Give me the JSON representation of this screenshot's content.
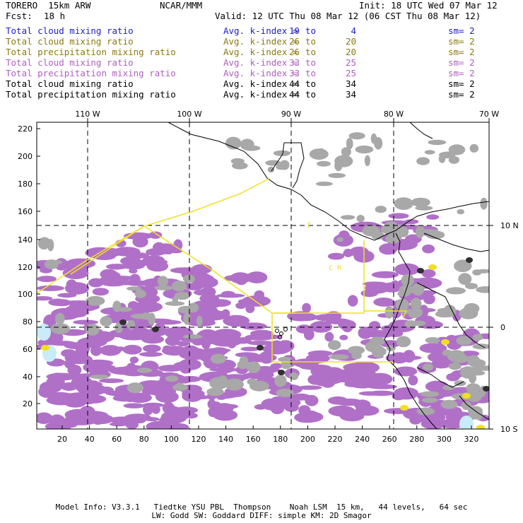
{
  "header": {
    "model": "TORERO  15km ARW",
    "org": "NCAR/MMM",
    "init": "Init: 18 UTC Wed 07 Mar 12",
    "fcst_label": "Fcst:",
    "fcst_value": "18 h",
    "valid": "Valid: 12 UTC Thu 08 Mar 12 (06 CST Thu 08 Mar 12)"
  },
  "legend_rows": [
    {
      "field": "Total cloud mixing ratio",
      "index_label": "Avg. k-index =",
      "from": "19",
      "to_word": "to",
      "to": "4",
      "sm": "sm= 2",
      "color": "#2020c0"
    },
    {
      "field": "Total cloud mixing ratio",
      "index_label": "Avg. k-index =",
      "from": "26",
      "to_word": "to",
      "to": "20",
      "sm": "sm= 2",
      "color": "#8a7a10"
    },
    {
      "field": "Total precipitation mixing ratio",
      "index_label": "Avg. k-index =",
      "from": "26",
      "to_word": "to",
      "to": "20",
      "sm": "sm= 2",
      "color": "#8a7a10"
    },
    {
      "field": "Total cloud mixing ratio",
      "index_label": "Avg. k-index =",
      "from": "33",
      "to_word": "to",
      "to": "25",
      "sm": "sm= 2",
      "color": "#b060c0"
    },
    {
      "field": "Total precipitation mixing ratio",
      "index_label": "Avg. k-index =",
      "from": "33",
      "to_word": "to",
      "to": "25",
      "sm": "sm= 2",
      "color": "#b060c0"
    },
    {
      "field": "Total cloud mixing ratio",
      "index_label": "Avg. k-index =",
      "from": "44",
      "to_word": "to",
      "to": "34",
      "sm": "sm= 2",
      "color": "#000000"
    },
    {
      "field": "Total precipitation mixing ratio",
      "index_label": "Avg. k-index =",
      "from": "44",
      "to_word": "to",
      "to": "34",
      "sm": "sm= 2",
      "color": "#000000"
    }
  ],
  "map": {
    "top_lon_labels": [
      "110 W",
      "100 W",
      "90 W",
      "80 W",
      "70 W"
    ],
    "right_lat_labels": [
      "10 N",
      "0",
      "10 S"
    ],
    "y_ticks": [
      "220",
      "200",
      "180",
      "160",
      "140",
      "120",
      "100",
      "80",
      "60",
      "40",
      "20"
    ],
    "x_ticks": [
      "20",
      "40",
      "60",
      "80",
      "100",
      "120",
      "140",
      "160",
      "180",
      "200",
      "220",
      "240",
      "260",
      "280",
      "300",
      "320"
    ],
    "region_labels": [
      "I",
      "C R"
    ],
    "colors": {
      "purple": "#b070c8",
      "gray": "#a8a8a8",
      "dark": "#303030",
      "yellow_line": "#f0e020",
      "cyan": "#c8ecf8",
      "land_line": "#000000"
    }
  },
  "footer": {
    "line1": "Model Info: V3.3.1   Tiedtke YSU PBL  Thompson    Noah LSM  15 km,   44 levels,   64 sec",
    "line2": "LW: Godd SW: Goddard DIFF: simple KM: 2D Smagor"
  }
}
